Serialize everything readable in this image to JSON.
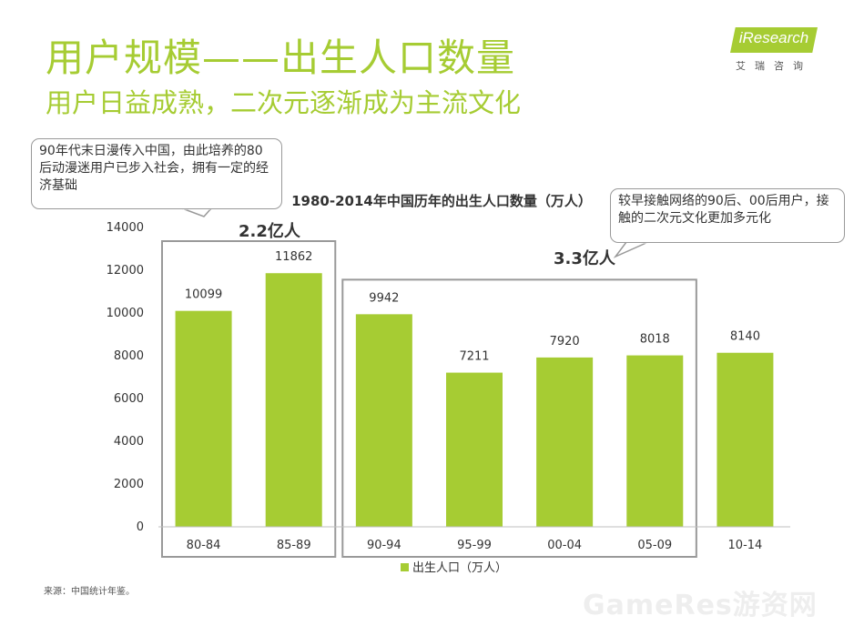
{
  "header": {
    "title": "用户规模——出生人口数量",
    "subtitle": "用户日益成熟，二次元逐渐成为主流文化"
  },
  "logo": {
    "brand": "iResearch",
    "sub": "艾瑞咨询"
  },
  "notes": {
    "bubble_left": "90年代末日漫传入中国，由此培养的80后动漫迷用户已步入社会，拥有一定的经济基础",
    "bubble_right": "较早接触网络的90后、00后用户，接触的二次元文化更加多元化",
    "group_left_label": "2.2亿人",
    "group_right_label": "3.3亿人"
  },
  "source": "来源：中国统计年鉴。",
  "watermark": "GameRes游资网",
  "colors": {
    "accent": "#a6cc33",
    "bar": "#a6cc33",
    "text": "#333333",
    "frame": "#999999"
  },
  "chart_data": {
    "type": "bar",
    "title": "1980-2014年中国历年的出生人口数量（万人）",
    "categories": [
      "80-84",
      "85-89",
      "90-94",
      "95-99",
      "00-04",
      "05-09",
      "10-14"
    ],
    "series": [
      {
        "name": "出生人口（万人）",
        "values": [
          10099,
          11862,
          9942,
          7211,
          7920,
          8018,
          8140
        ]
      }
    ],
    "ylim": [
      0,
      14000
    ],
    "yticks": [
      0,
      2000,
      4000,
      6000,
      8000,
      10000,
      12000,
      14000
    ],
    "grid": false,
    "legend": "bottom",
    "data_labels": true,
    "groups": [
      {
        "label": "2.2亿人",
        "categories": [
          "80-84",
          "85-89"
        ]
      },
      {
        "label": "3.3亿人",
        "categories": [
          "90-94",
          "95-99",
          "00-04",
          "05-09"
        ]
      }
    ]
  }
}
